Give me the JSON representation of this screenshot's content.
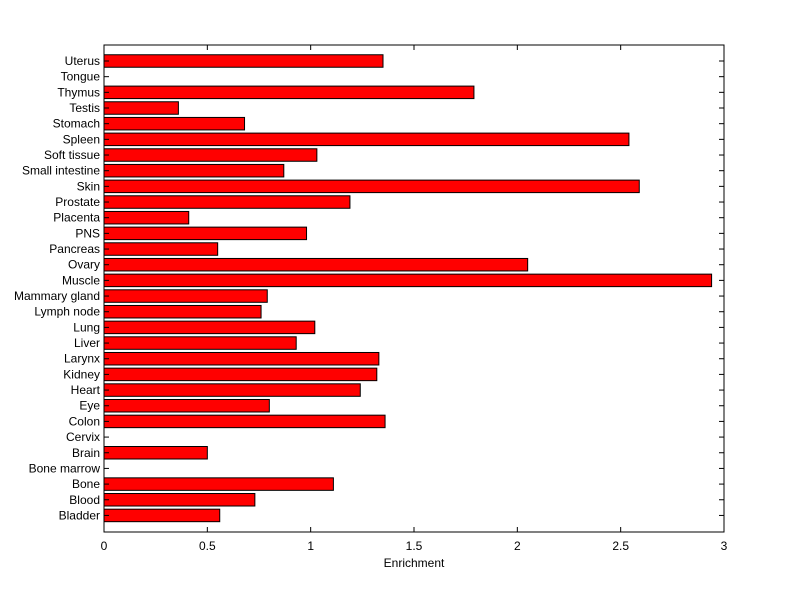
{
  "chart_data": {
    "type": "bar",
    "orientation": "horizontal",
    "title": "",
    "xlabel": "Enrichment",
    "ylabel": "",
    "xlim": [
      0,
      3
    ],
    "xticks": [
      0,
      0.5,
      1,
      1.5,
      2,
      2.5,
      3
    ],
    "xtick_labels": [
      "0",
      "0.5",
      "1",
      "1.5",
      "2",
      "2.5",
      "3"
    ],
    "bar_color": "#ff0000",
    "edge_color": "#000000",
    "grid": false,
    "categories": [
      "Uterus",
      "Tongue",
      "Thymus",
      "Testis",
      "Stomach",
      "Spleen",
      "Soft tissue",
      "Small intestine",
      "Skin",
      "Prostate",
      "Placenta",
      "PNS",
      "Pancreas",
      "Ovary",
      "Muscle",
      "Mammary gland",
      "Lymph node",
      "Lung",
      "Liver",
      "Larynx",
      "Kidney",
      "Heart",
      "Eye",
      "Colon",
      "Cervix",
      "Brain",
      "Bone marrow",
      "Bone",
      "Blood",
      "Bladder"
    ],
    "values": [
      1.35,
      0,
      1.79,
      0.36,
      0.68,
      2.54,
      1.03,
      0.87,
      2.59,
      1.19,
      0.41,
      0.98,
      0.55,
      2.05,
      2.94,
      0.79,
      0.76,
      1.02,
      0.93,
      1.33,
      1.32,
      1.24,
      0.8,
      1.36,
      0,
      0.5,
      0,
      1.11,
      0.73,
      0.56
    ]
  }
}
